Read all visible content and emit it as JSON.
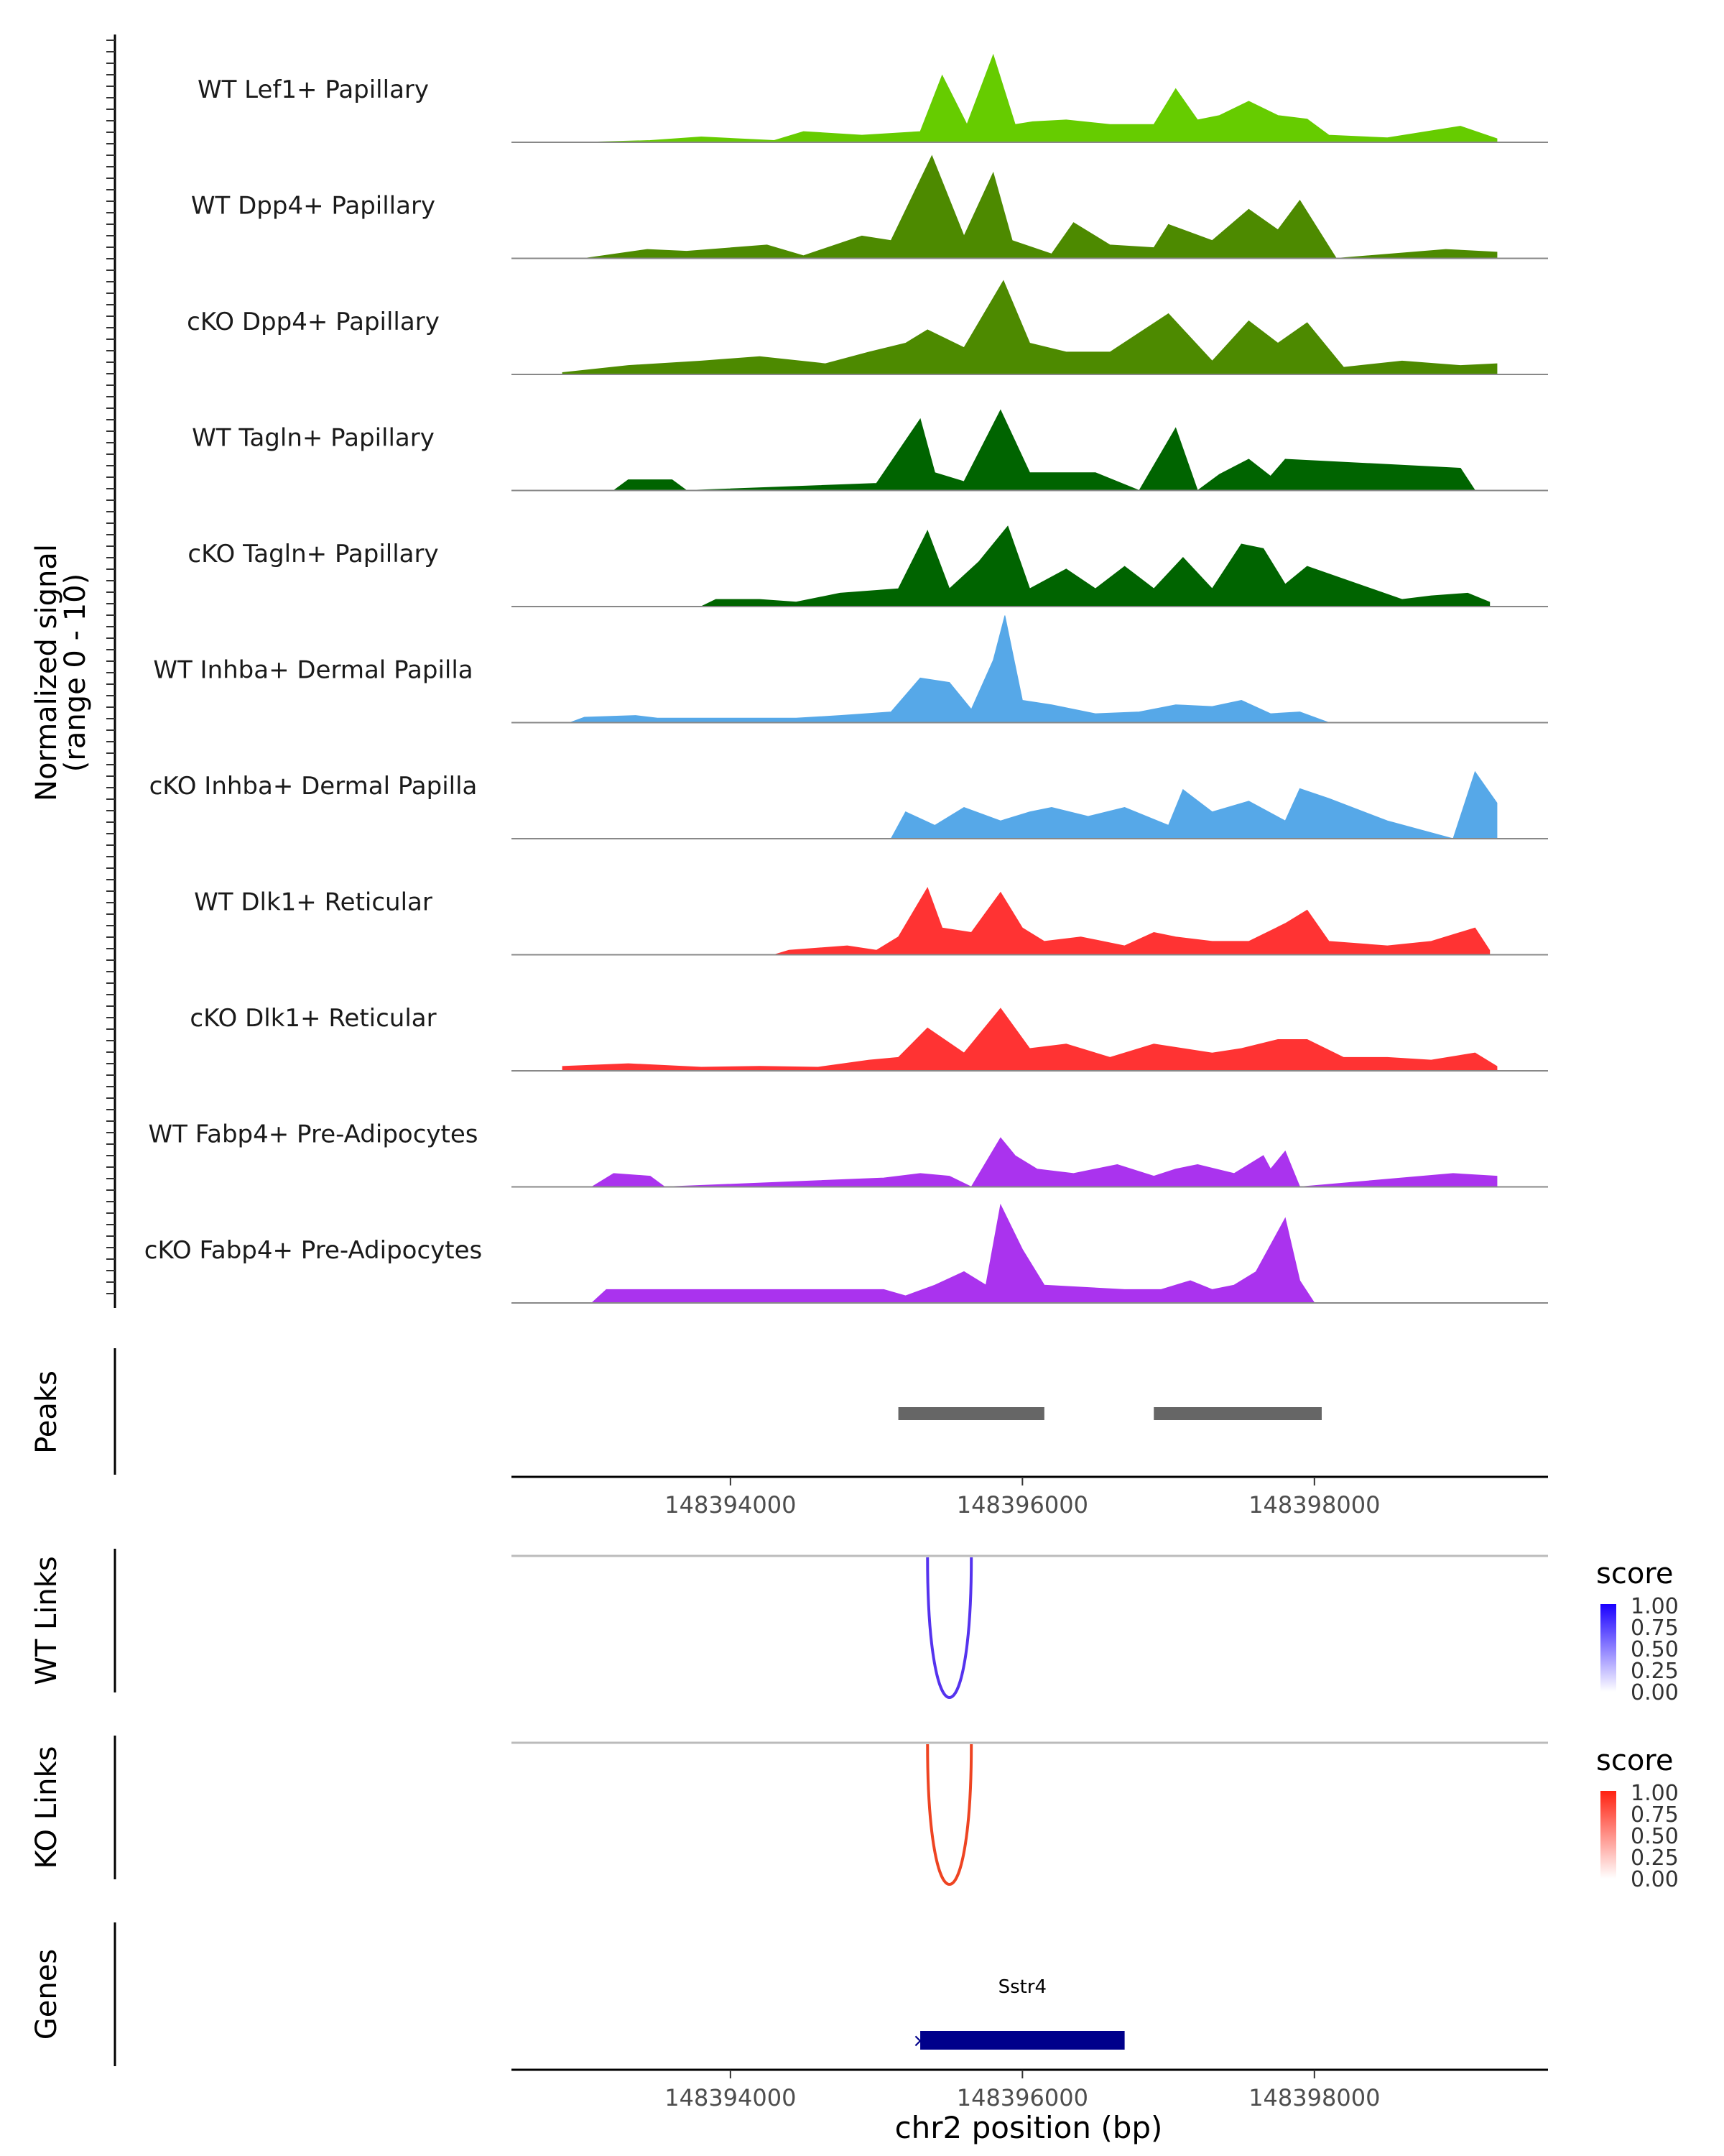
{
  "chart_data": {
    "type": "area",
    "title": "",
    "region": {
      "chromosome": "chr2",
      "start": 148392500,
      "end": 148399600
    },
    "xlabel": "chr2 position (bp)",
    "x_ticks": [
      148394000,
      148396000,
      148398000
    ],
    "signal_panel": {
      "ylabel_line1": "Normalized signal",
      "ylabel_line2": "(range 0 - 10)",
      "ylim": [
        0,
        10
      ],
      "series": [
        {
          "name": "WT Lef1+ Papillary",
          "color": "#66CC00",
          "x": [
            148393000,
            148393450,
            148393800,
            148394300,
            148394500,
            148394900,
            148395300,
            148395450,
            148395620,
            148395800,
            148395950,
            148396070,
            148396300,
            148396600,
            148396900,
            148397050,
            148397200,
            148397350,
            148397550,
            148397750,
            148397950,
            148398100,
            148398500,
            148399000,
            148399250
          ],
          "y": [
            0,
            0.2,
            0.6,
            0.2,
            1.2,
            0.8,
            1.2,
            7.5,
            2.0,
            9.8,
            2.0,
            2.3,
            2.5,
            2.0,
            2.0,
            6.0,
            2.5,
            3.0,
            4.6,
            3.0,
            2.6,
            0.8,
            0.5,
            1.8,
            0.4
          ]
        },
        {
          "name": "WT Dpp4+ Papillary",
          "color": "#4D8A00",
          "x": [
            148393000,
            148393430,
            148393700,
            148394250,
            148394500,
            148394900,
            148395100,
            148395380,
            148395600,
            148395800,
            148395930,
            148396200,
            148396350,
            148396600,
            148396900,
            148397000,
            148397300,
            148397550,
            148397750,
            148397900,
            148398150,
            148398900,
            148399250
          ],
          "y": [
            0,
            1.0,
            0.8,
            1.5,
            0.3,
            2.5,
            2.0,
            11.5,
            2.5,
            9.6,
            2.0,
            0.5,
            4.0,
            1.5,
            1.2,
            3.8,
            2.0,
            5.5,
            3.2,
            6.5,
            0,
            1.0,
            0.7
          ]
        },
        {
          "name": "cKO Dpp4+ Papillary",
          "color": "#4D8A00",
          "x": [
            148392850,
            148393300,
            148393800,
            148394200,
            148394650,
            148394950,
            148395200,
            148395350,
            148395600,
            148395870,
            148396050,
            148396300,
            148396600,
            148397000,
            148397300,
            148397550,
            148397750,
            148397950,
            148398200,
            148398600,
            148399000,
            148399250
          ],
          "y": [
            0.2,
            1.0,
            1.5,
            2.0,
            1.2,
            2.5,
            3.5,
            5.0,
            3.0,
            10.5,
            3.5,
            2.5,
            2.5,
            6.8,
            1.5,
            6.0,
            3.5,
            5.8,
            0.8,
            1.5,
            1.0,
            1.2
          ]
        },
        {
          "name": "WT Tagln+ Papillary",
          "color": "#006400",
          "x": [
            148393200,
            148393300,
            148393600,
            148393700,
            148395000,
            148395300,
            148395400,
            148395600,
            148395850,
            148396050,
            148396200,
            148396500,
            148396800,
            148397050,
            148397200,
            148397350,
            148397550,
            148397700,
            148397800,
            148399000,
            148399100
          ],
          "y": [
            0,
            1.2,
            1.2,
            0,
            0.8,
            8.0,
            2.0,
            1.0,
            9.0,
            2.0,
            2.0,
            2.0,
            0,
            7.0,
            0,
            1.8,
            3.5,
            1.6,
            3.5,
            2.5,
            0
          ]
        },
        {
          "name": "cKO Tagln+ Papillary",
          "color": "#006400",
          "x": [
            148393800,
            148393900,
            148394200,
            148394450,
            148394750,
            148395150,
            148395350,
            148395500,
            148395700,
            148395900,
            148396050,
            148396300,
            148396500,
            148396700,
            148396900,
            148397100,
            148397300,
            148397500,
            148397650,
            148397800,
            148397950,
            148398600,
            148398800,
            148399050,
            148399200
          ],
          "y": [
            0,
            0.8,
            0.8,
            0.5,
            1.5,
            2.0,
            8.5,
            2.0,
            5.0,
            9.0,
            2.0,
            4.2,
            2.0,
            4.5,
            2.0,
            5.5,
            2.0,
            7.0,
            6.5,
            2.5,
            4.5,
            0.8,
            1.2,
            1.5,
            0.5
          ]
        },
        {
          "name": "WT Inhba+ Dermal Papilla",
          "color": "#56A8E8",
          "x": [
            148392900,
            148393000,
            148393350,
            148393500,
            148394450,
            148394750,
            148395100,
            148395300,
            148395500,
            148395650,
            148395800,
            148395880,
            148396000,
            148396200,
            148396500,
            148396800,
            148397050,
            148397300,
            148397500,
            148397700,
            148397900,
            148398100
          ],
          "y": [
            0,
            0.6,
            0.8,
            0.5,
            0.5,
            0.8,
            1.2,
            5.0,
            4.5,
            1.5,
            7.0,
            12.0,
            2.5,
            2.0,
            1.0,
            1.2,
            2.0,
            1.8,
            2.5,
            1.0,
            1.2,
            0
          ]
        },
        {
          "name": "cKO Inhba+ Dermal Papilla",
          "color": "#56A8E8",
          "x": [
            148395100,
            148395200,
            148395400,
            148395600,
            148395850,
            148396050,
            148396200,
            148396450,
            148396700,
            148397000,
            148397100,
            148397300,
            148397550,
            148397800,
            148397900,
            148398100,
            148398500,
            148398950,
            148399100,
            148399250
          ],
          "y": [
            0,
            3.0,
            1.5,
            3.5,
            2.0,
            3.0,
            3.5,
            2.5,
            3.5,
            1.5,
            5.5,
            3.0,
            4.2,
            2.0,
            5.6,
            4.5,
            2.0,
            0,
            7.5,
            4.0
          ]
        },
        {
          "name": "WT Dlk1+ Reticular",
          "color": "#FF3333",
          "x": [
            148394300,
            148394400,
            148394800,
            148395000,
            148395150,
            148395350,
            148395450,
            148395650,
            148395850,
            148396000,
            148396150,
            148396400,
            148396700,
            148396900,
            148397050,
            148397300,
            148397550,
            148397800,
            148397950,
            148398100,
            148398500,
            148398800,
            148399100,
            148399200
          ],
          "y": [
            0,
            0.5,
            1.0,
            0.5,
            2.0,
            7.5,
            3.0,
            2.5,
            7.0,
            3.0,
            1.5,
            2.0,
            1.0,
            2.5,
            2.0,
            1.5,
            1.5,
            3.5,
            5.0,
            1.5,
            1.0,
            1.5,
            3.0,
            0.5
          ]
        },
        {
          "name": "cKO Dlk1+ Reticular",
          "color": "#FF3333",
          "x": [
            148392850,
            148393300,
            148393800,
            148394200,
            148394600,
            148394950,
            148395150,
            148395350,
            148395600,
            148395850,
            148396050,
            148396300,
            148396600,
            148396900,
            148397100,
            148397300,
            148397500,
            148397750,
            148397950,
            148398200,
            148398500,
            148398800,
            148399100,
            148399250
          ],
          "y": [
            0.5,
            0.8,
            0.4,
            0.5,
            0.4,
            1.2,
            1.5,
            4.8,
            2.0,
            7.0,
            2.5,
            3.0,
            1.5,
            3.0,
            2.5,
            2.0,
            2.5,
            3.5,
            3.5,
            1.5,
            1.5,
            1.2,
            2.0,
            0.5
          ]
        },
        {
          "name": "WT Fabp4+ Pre-Adipocytes",
          "color": "#AA33EE",
          "x": [
            148393050,
            148393200,
            148393450,
            148393550,
            148395050,
            148395300,
            148395500,
            148395650,
            148395850,
            148395950,
            148396100,
            148396350,
            148396650,
            148396900,
            148397050,
            148397200,
            148397450,
            148397650,
            148397700,
            148397800,
            148397900,
            148398950,
            148399250
          ],
          "y": [
            0,
            1.5,
            1.2,
            0,
            1.0,
            1.5,
            1.2,
            0,
            5.5,
            3.5,
            2.0,
            1.5,
            2.5,
            1.2,
            2.0,
            2.5,
            1.5,
            3.5,
            2.0,
            4.0,
            0,
            1.5,
            1.2
          ]
        },
        {
          "name": "cKO Fabp4+ Pre-Adipocytes",
          "color": "#AA33EE",
          "x": [
            148393050,
            148393150,
            148395050,
            148395200,
            148395400,
            148395600,
            148395750,
            148395850,
            148396000,
            148396150,
            148396700,
            148396950,
            148397150,
            148397300,
            148397450,
            148397600,
            148397800,
            148397900,
            148398000
          ],
          "y": [
            0,
            1.5,
            1.5,
            0.8,
            2.0,
            3.5,
            2.0,
            11.0,
            6.0,
            2.0,
            1.5,
            1.5,
            2.5,
            1.5,
            2.0,
            3.5,
            9.5,
            2.5,
            0
          ]
        }
      ]
    },
    "peaks": {
      "label": "Peaks",
      "ranges": [
        [
          148395150,
          148396150
        ],
        [
          148396900,
          148398050
        ]
      ]
    },
    "links": [
      {
        "label": "WT Links",
        "legend_title": "score",
        "color": "#5533EE",
        "start": 148395350,
        "end": 148395650,
        "score": 1.0,
        "legend_ticks": [
          "1.00",
          "0.75",
          "0.50",
          "0.25",
          "0.00"
        ]
      },
      {
        "label": "KO Links",
        "legend_title": "score",
        "color": "#EE4422",
        "start": 148395350,
        "end": 148395650,
        "score": 1.0,
        "legend_ticks": [
          "1.00",
          "0.75",
          "0.50",
          "0.25",
          "0.00"
        ]
      }
    ],
    "genes": {
      "label": "Genes",
      "color": "#00008B",
      "items": [
        {
          "name": "Sstr4",
          "start": 148395300,
          "end": 148396700,
          "strand_marker": "×"
        }
      ]
    }
  }
}
